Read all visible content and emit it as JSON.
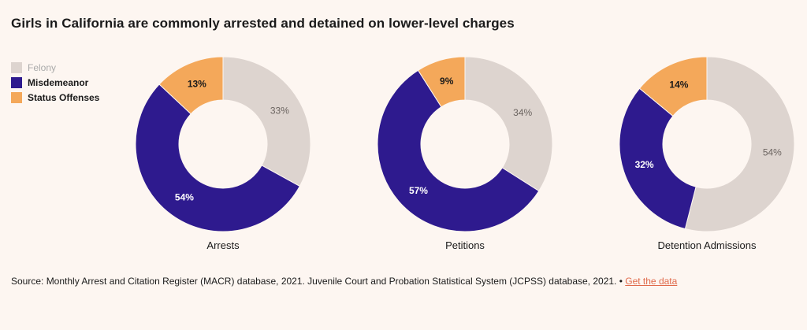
{
  "title": "Girls in California are commonly arrested and detained on lower-level charges",
  "legend": [
    {
      "label": "Felony",
      "color": "#ddd4cf"
    },
    {
      "label": "Misdemeanor",
      "color": "#2e1a8e"
    },
    {
      "label": "Status Offenses",
      "color": "#f4a85a"
    }
  ],
  "chart_data": {
    "type": "pie",
    "variant": "donut",
    "categories": [
      "Felony",
      "Misdemeanor",
      "Status Offenses"
    ],
    "colors": [
      "#ddd4cf",
      "#2e1a8e",
      "#f4a85a"
    ],
    "charts": [
      {
        "label": "Arrests",
        "values": [
          33,
          54,
          13
        ],
        "labels": [
          "33%",
          "54%",
          "13%"
        ]
      },
      {
        "label": "Petitions",
        "values": [
          34,
          57,
          9
        ],
        "labels": [
          "34%",
          "57%",
          "9%"
        ]
      },
      {
        "label": "Detention Admissions",
        "values": [
          54,
          32,
          14
        ],
        "labels": [
          "54%",
          "32%",
          "14%"
        ]
      }
    ]
  },
  "source": {
    "text": "Source: Monthly Arrest and Citation Register (MACR) database, 2021. Juvenile Court and Probation Statistical System (JCPSS) database, 2021. • ",
    "link_label": "Get the data"
  }
}
